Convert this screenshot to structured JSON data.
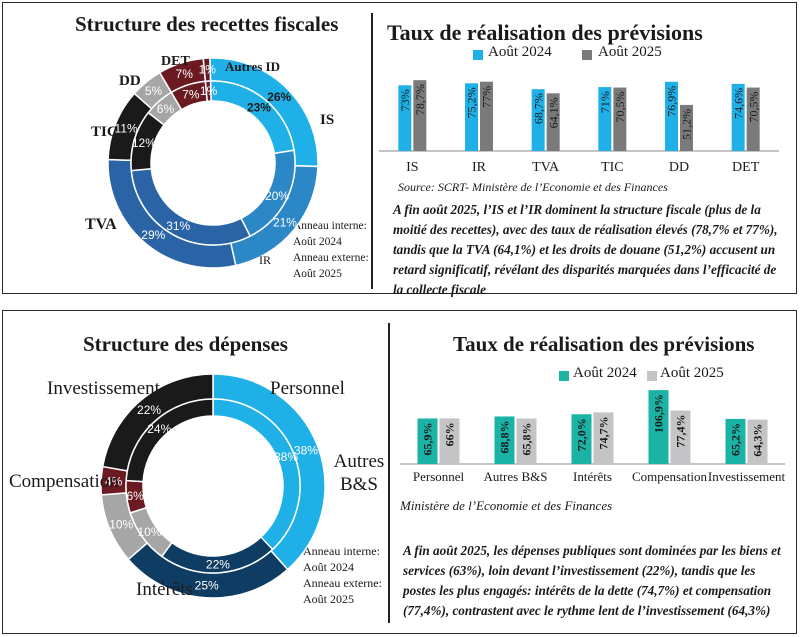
{
  "colors": {
    "blue_light": "#1fb0e8",
    "blue_mid": "#2c87c6",
    "blue_dark": "#2a64a6",
    "black": "#1a1a1a",
    "gray": "#a6a6a6",
    "maroon": "#6b1a22",
    "navy": "#0f3c62",
    "bar_2024_top": "#1fb0e8",
    "bar_2025_top": "#7a7a7a",
    "bar_2024_bottom": "#1ab3a6",
    "bar_2025_bottom": "#c4c4c6"
  },
  "top": {
    "donut": {
      "title": "Structure des recettes fiscales",
      "ring_note": {
        "inner_label": "Anneau interne:",
        "inner_period": "Août 2024",
        "outer_label": "Anneau externe:",
        "outer_period": "Août 2025"
      }
    },
    "bars": {
      "title": "Taux de réalisation des prévisions",
      "legend_2024": "Août  2024",
      "legend_2025": "Août 2025",
      "source": "Source: SCRT- Ministère de l’Economie et des Finances"
    },
    "summary": "A fin août 2025, l’IS et l’IR dominent la structure fiscale (plus de la moitié des recettes), avec des taux de réalisation élevés (78,7% et 77%), tandis que la TVA (64,1%) et les droits de douane (51,2%) accusent un retard significatif, révélant des disparités marquées dans l’efficacité de la collecte fiscale"
  },
  "bottom": {
    "donut": {
      "title": "Structure des dépenses",
      "ring_note": {
        "inner_label": "Anneau interne:",
        "inner_period": "Août 2024",
        "outer_label": "Anneau externe:",
        "outer_period": "Août 2025"
      }
    },
    "bars": {
      "title": "Taux de réalisation des prévisions",
      "legend_2024": "Août 2024",
      "legend_2025": "Août 2025",
      "source": "Ministère de l’Economie et des Finances"
    },
    "summary": "A fin août 2025, les dépenses publiques sont dominées par les biens et services (63%), loin devant l’investissement (22%), tandis que les postes les plus engagés: intérêts de la dette (74,7%) et compensation (77,4%),  contrastent avec le rythme lent de l’investissement (64,3%)"
  },
  "chart_data": [
    {
      "id": "recettes-donut",
      "type": "pie",
      "title": "Structure des recettes fiscales",
      "series": [
        {
          "name": "Août 2024",
          "ring": "inner",
          "labels": [
            "IS",
            "IR",
            "TVA",
            "TIC",
            "DD",
            "DET",
            "Autres ID"
          ],
          "values": [
            23,
            20,
            31,
            12,
            6,
            7,
            1
          ],
          "value_labels": [
            "23%",
            "20%",
            "31%",
            "12%",
            "6%",
            "7%",
            "1%"
          ]
        },
        {
          "name": "Août 2025",
          "ring": "outer",
          "labels": [
            "IS",
            "IR",
            "TVA",
            "TIC",
            "DD",
            "DET",
            "Autres ID"
          ],
          "values": [
            26,
            21,
            29,
            11,
            5,
            7,
            1
          ],
          "value_labels": [
            "26%",
            "21%",
            "29%",
            "11%",
            "5%",
            "7%",
            "1%"
          ]
        }
      ],
      "category_labels": [
        "IS",
        "IR",
        "TVA",
        "TIC",
        "DD",
        "DET",
        "Autres ID"
      ]
    },
    {
      "id": "recettes-bars",
      "type": "bar",
      "title": "Taux de réalisation des prévisions",
      "categories": [
        "IS",
        "IR",
        "TVA",
        "TIC",
        "DD",
        "DET"
      ],
      "series": [
        {
          "name": "Août  2024",
          "values": [
            73,
            75.2,
            68.7,
            71,
            76.9,
            74.6
          ],
          "value_labels": [
            "73%",
            "75,2%",
            "68,7%",
            "71%",
            "76,9%",
            "74,6%"
          ]
        },
        {
          "name": "Août 2025",
          "values": [
            78.7,
            77,
            64.1,
            70.5,
            51.2,
            70.5
          ],
          "value_labels": [
            "78,7%",
            "77%",
            "64,1%",
            "70,5%",
            "51,2%",
            "70,5%"
          ]
        }
      ],
      "ylim": [
        0,
        100
      ]
    },
    {
      "id": "depenses-donut",
      "type": "pie",
      "title": "Structure des dépenses",
      "series": [
        {
          "name": "Août 2024",
          "ring": "inner",
          "labels": [
            "Autres B&S",
            "Intérêts",
            "Compensation",
            "Personnel",
            "Investissement"
          ],
          "values": [
            38,
            22,
            10,
            6,
            24
          ],
          "value_labels": [
            "38%",
            "22%",
            "10%",
            "6%",
            "24%"
          ]
        },
        {
          "name": "Août 2025",
          "ring": "outer",
          "labels": [
            "Autres B&S",
            "Intérêts",
            "Compensation",
            "Personnel",
            "Investissement"
          ],
          "values": [
            38,
            25,
            10,
            4,
            22
          ],
          "value_labels": [
            "38%",
            "25%",
            "10%",
            "4%",
            "22%"
          ]
        }
      ],
      "category_labels": [
        "Personnel",
        "Autres B&S",
        "Intérêts",
        "Compensation",
        "Investissement"
      ]
    },
    {
      "id": "depenses-bars",
      "type": "bar",
      "title": "Taux de réalisation des prévisions",
      "categories": [
        "Personnel",
        "Autres B&S",
        "Intérêts",
        "Compensation",
        "Investissement"
      ],
      "series": [
        {
          "name": "Août 2024",
          "values": [
            65.9,
            68.8,
            72.0,
            106.9,
            65.2
          ],
          "value_labels": [
            "65,9%",
            "68,8%",
            "72,0%",
            "106,9%",
            "65,2%"
          ]
        },
        {
          "name": "Août 2025",
          "values": [
            66,
            65.8,
            74.7,
            77.4,
            64.3
          ],
          "value_labels": [
            "66%",
            "65,8%",
            "74,7%",
            "77,4%",
            "64,3%"
          ]
        }
      ],
      "ylim": [
        0,
        110
      ]
    }
  ]
}
